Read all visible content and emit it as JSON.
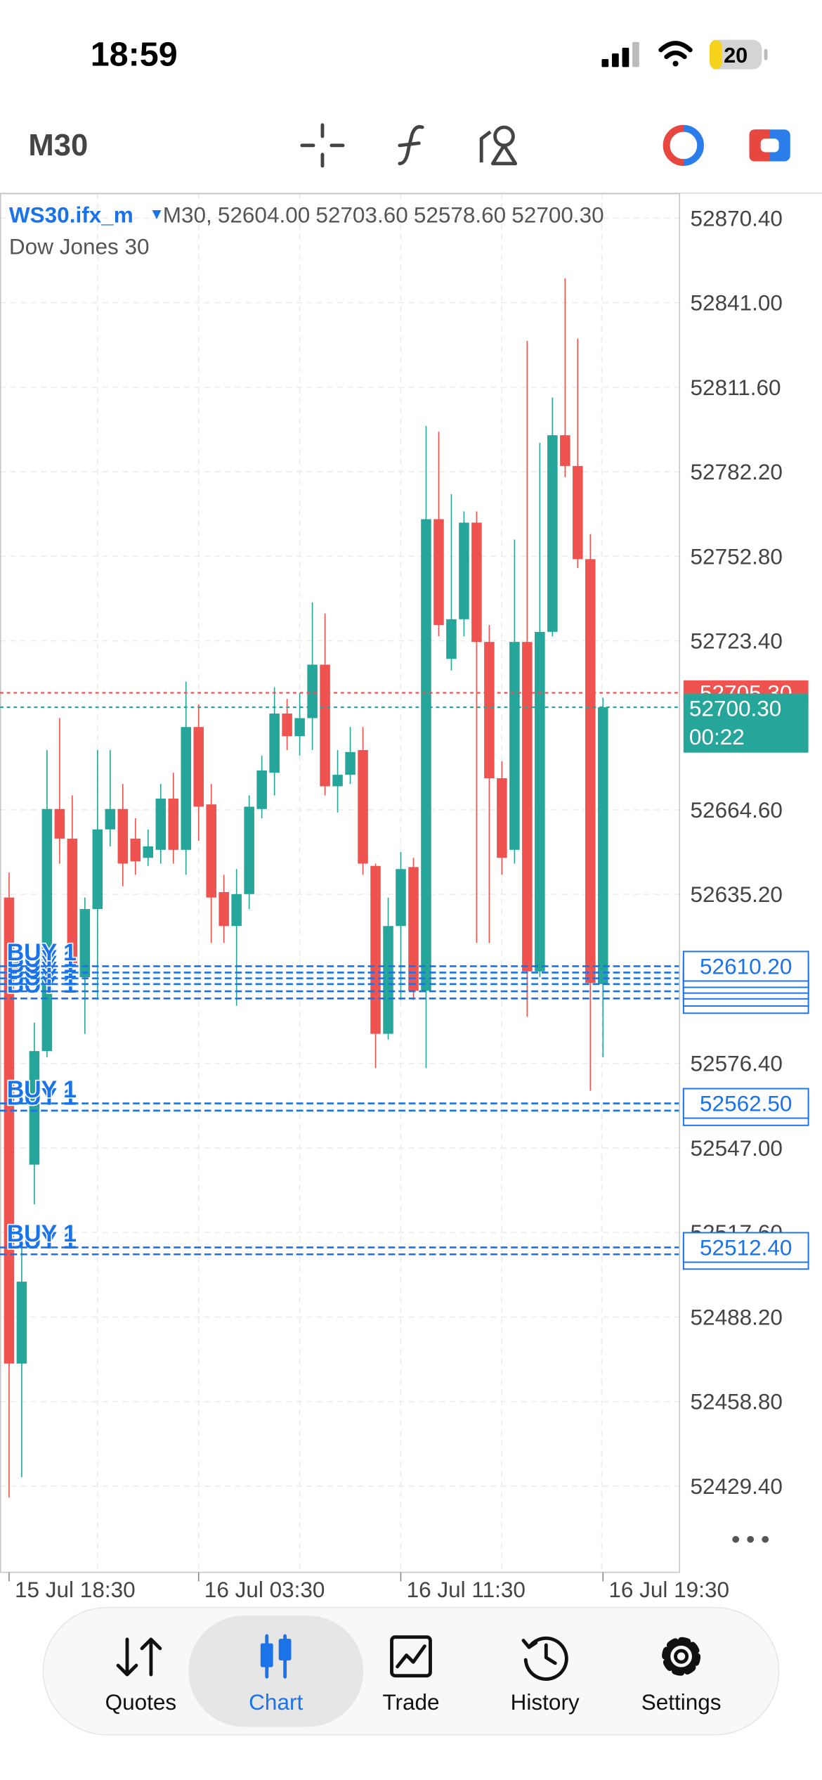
{
  "status_bar": {
    "time": "18:59",
    "battery": "20"
  },
  "toolbar": {
    "timeframe": "M30"
  },
  "chart_data": {
    "type": "candlestick",
    "symbol": "WS30.ifx_m",
    "timeframe_label": "M30,",
    "ohlc_labels": [
      "52604.00",
      "52703.60",
      "52578.60",
      "52700.30"
    ],
    "subtitle": "Dow Jones 30",
    "categories": [
      "15 Jul 18:30",
      null,
      null,
      null,
      null,
      null,
      null,
      null,
      null,
      null,
      null,
      null,
      null,
      null,
      null,
      "16 Jul 03:30",
      null,
      null,
      null,
      null,
      null,
      null,
      null,
      null,
      null,
      null,
      null,
      null,
      null,
      null,
      null,
      "16 Jul 11:30",
      null,
      null,
      null,
      null,
      null,
      null,
      null,
      null,
      null,
      null,
      null,
      null,
      null,
      null,
      null,
      "16 Jul 19:30"
    ],
    "open": [
      52634.1,
      52472.0,
      52541.2,
      52580.7,
      52664.9,
      52654.6,
      52606.4,
      52630.1,
      52657.8,
      52664.9,
      52654.6,
      52647.9,
      52650.7,
      52668.5,
      52650.7,
      52693.4,
      52666.5,
      52636.0,
      52624.2,
      52635.3,
      52664.9,
      52677.5,
      52698.1,
      52690.2,
      52696.5,
      52715.1,
      52672.8,
      52676.8,
      52685.4,
      52645.1,
      52586.7,
      52624.2,
      52644.7,
      52601.7,
      52765.7,
      52717.1,
      52730.9,
      52764.5,
      52723.0,
      52675.6,
      52650.7,
      52723.0,
      52608.4,
      52726.5,
      52794.9,
      52784.2,
      52751.8,
      52604.0
    ],
    "high": [
      52642.8,
      52515.5,
      52590.6,
      52685.4,
      52696.5,
      52669.6,
      52634.1,
      52685.4,
      52685.4,
      52673.6,
      52661.7,
      52657.8,
      52673.6,
      52677.5,
      52709.2,
      52701.3,
      52673.6,
      52642.0,
      52644.0,
      52669.6,
      52683.5,
      52707.2,
      52703.2,
      52705.2,
      52736.8,
      52732.9,
      52685.4,
      52693.4,
      52693.4,
      52645.9,
      52634.1,
      52649.9,
      52647.9,
      52798.1,
      52796.1,
      52774.4,
      52768.4,
      52768.4,
      52728.9,
      52681.5,
      52758.6,
      52827.7,
      52792.2,
      52808.0,
      52849.5,
      52828.5,
      52760.5,
      52703.6
    ],
    "low": [
      52425.4,
      52432.5,
      52527.4,
      52578.6,
      52645.9,
      52602.5,
      52586.7,
      52598.5,
      52651.9,
      52638.0,
      52642.0,
      52645.1,
      52645.9,
      52645.9,
      52642.0,
      52653.8,
      52618.3,
      52618.3,
      52596.5,
      52630.1,
      52661.7,
      52669.6,
      52685.4,
      52683.5,
      52685.4,
      52669.6,
      52663.7,
      52673.6,
      52642.0,
      52574.8,
      52584.7,
      52598.5,
      52598.5,
      52574.8,
      52725.0,
      52713.1,
      52725.0,
      52618.3,
      52618.3,
      52642.0,
      52645.9,
      52592.6,
      52606.4,
      52725.0,
      52780.3,
      52748.7,
      52566.9,
      52578.6
    ],
    "close": [
      52472.0,
      52500.5,
      52580.7,
      52664.9,
      52654.6,
      52610.4,
      52630.1,
      52657.8,
      52664.9,
      52645.9,
      52646.7,
      52651.9,
      52668.5,
      52650.7,
      52693.4,
      52665.7,
      52634.1,
      52624.2,
      52635.3,
      52665.7,
      52678.3,
      52698.1,
      52690.2,
      52696.5,
      52715.1,
      52672.8,
      52676.8,
      52684.7,
      52645.9,
      52586.7,
      52624.2,
      52644.0,
      52601.7,
      52765.7,
      52728.9,
      52730.9,
      52764.5,
      52723.0,
      52675.6,
      52647.9,
      52723.0,
      52608.4,
      52726.5,
      52794.9,
      52784.2,
      52751.8,
      52604.4,
      52700.3
    ],
    "up_color": "#26a69a",
    "down_color": "#ef5350",
    "ylim": [
      52399.4,
      52879.1
    ],
    "yticks": [
      {
        "value": 52870.4,
        "label": "52870.40"
      },
      {
        "value": 52841.0,
        "label": "52841.00"
      },
      {
        "value": 52811.6,
        "label": "52811.60"
      },
      {
        "value": 52782.2,
        "label": "52782.20"
      },
      {
        "value": 52752.8,
        "label": "52752.80"
      },
      {
        "value": 52723.4,
        "label": "52723.40"
      },
      {
        "value": 52664.6,
        "label": "52664.60"
      },
      {
        "value": 52635.2,
        "label": "52635.20"
      },
      {
        "value": 52576.4,
        "label": "52576.40"
      },
      {
        "value": 52547.0,
        "label": "52547.00"
      },
      {
        "value": 52517.6,
        "label": "52517.60"
      },
      {
        "value": 52488.2,
        "label": "52488.20"
      },
      {
        "value": 52458.8,
        "label": "52458.80"
      },
      {
        "value": 52429.4,
        "label": "52429.40"
      }
    ],
    "grid": true,
    "bid": {
      "value": 52705.3,
      "label": "52705.30",
      "color": "#ef5350"
    },
    "last": {
      "value": 52700.3,
      "label": "52700.30",
      "countdown": "00:22",
      "color": "#26a69a"
    },
    "order_color": "#1a73e8",
    "orders": [
      {
        "label": "BUY 1",
        "price": 52610.2,
        "price_label": "52610.20"
      },
      {
        "label": "BUY 1",
        "price": 52608.0,
        "price_label": "52608.00"
      },
      {
        "label": "BUY 1",
        "price": 52606.0,
        "price_label": "52606.00"
      },
      {
        "label": "BUY 1",
        "price": 52604.0,
        "price_label": "52604.00"
      },
      {
        "label": "BUY 1",
        "price": 52601.5,
        "price_label": "52601.50"
      },
      {
        "label": "BUY 1",
        "price": 52599.0,
        "price_label": "52599.00"
      },
      {
        "label": "BUY 1",
        "price": 52562.5,
        "price_label": "52562.50"
      },
      {
        "label": "BUY 1",
        "price": 52560.0,
        "price_label": "52560.00"
      },
      {
        "label": "BUY 1",
        "price": 52512.4,
        "price_label": "52512.40"
      },
      {
        "label": "BUY 1",
        "price": 52510.0,
        "price_label": "52510.00"
      }
    ]
  },
  "nav": {
    "tabs": [
      "Quotes",
      "Chart",
      "Trade",
      "History",
      "Settings"
    ],
    "active": 1
  }
}
